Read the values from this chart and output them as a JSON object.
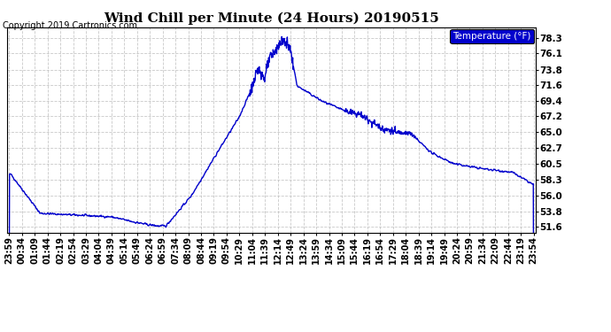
{
  "title": "Wind Chill per Minute (24 Hours) 20190515",
  "copyright": "Copyright 2019 Cartronics.com",
  "legend_label": "Temperature (°F)",
  "legend_bg": "#0000cc",
  "legend_text_color": "#ffffff",
  "line_color": "#0000cc",
  "bg_color": "#ffffff",
  "plot_bg_color": "#ffffff",
  "grid_color": "#bbbbbb",
  "yticks": [
    51.6,
    53.8,
    56.0,
    58.3,
    60.5,
    62.7,
    65.0,
    67.2,
    69.4,
    71.6,
    73.8,
    76.1,
    78.3
  ],
  "ylim": [
    50.8,
    79.8
  ],
  "x_labels": [
    "23:59",
    "00:34",
    "01:09",
    "01:44",
    "02:19",
    "02:54",
    "03:29",
    "04:04",
    "04:39",
    "05:14",
    "05:49",
    "06:24",
    "06:59",
    "07:34",
    "08:09",
    "08:44",
    "09:19",
    "09:54",
    "10:29",
    "11:04",
    "11:39",
    "12:14",
    "12:49",
    "13:24",
    "13:59",
    "14:34",
    "15:09",
    "15:44",
    "16:19",
    "16:54",
    "17:29",
    "18:04",
    "18:39",
    "19:14",
    "19:49",
    "20:24",
    "20:59",
    "21:34",
    "22:09",
    "22:44",
    "23:19",
    "23:54"
  ],
  "title_fontsize": 11,
  "copyright_fontsize": 7,
  "tick_fontsize": 7,
  "ytick_fontsize": 7.5,
  "legend_fontsize": 7.5,
  "line_width": 1.0
}
